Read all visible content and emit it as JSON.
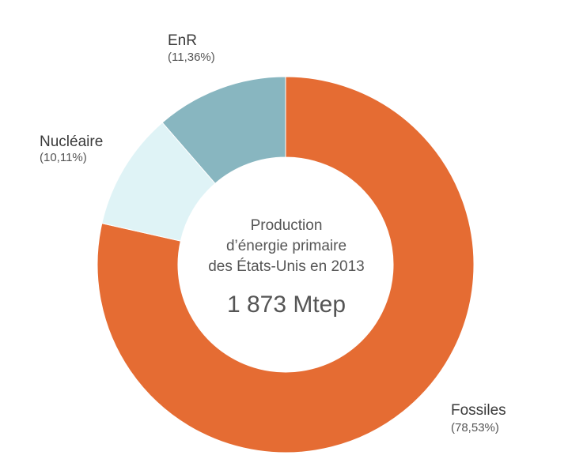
{
  "chart_data": {
    "type": "pie",
    "variant": "donut",
    "categories": [
      "Fossiles",
      "Nucléaire",
      "EnR"
    ],
    "values": [
      78.53,
      10.11,
      11.36
    ],
    "percent_labels": [
      "(78,53%)",
      "(10,11%)",
      "(11,36%)"
    ],
    "colors": [
      "#e56c33",
      "#dff3f6",
      "#88b6c0"
    ],
    "center": {
      "lines": [
        "Production",
        "d’énergie primaire",
        "des États-Unis en 2013"
      ],
      "total": "1 873 Mtep"
    }
  }
}
